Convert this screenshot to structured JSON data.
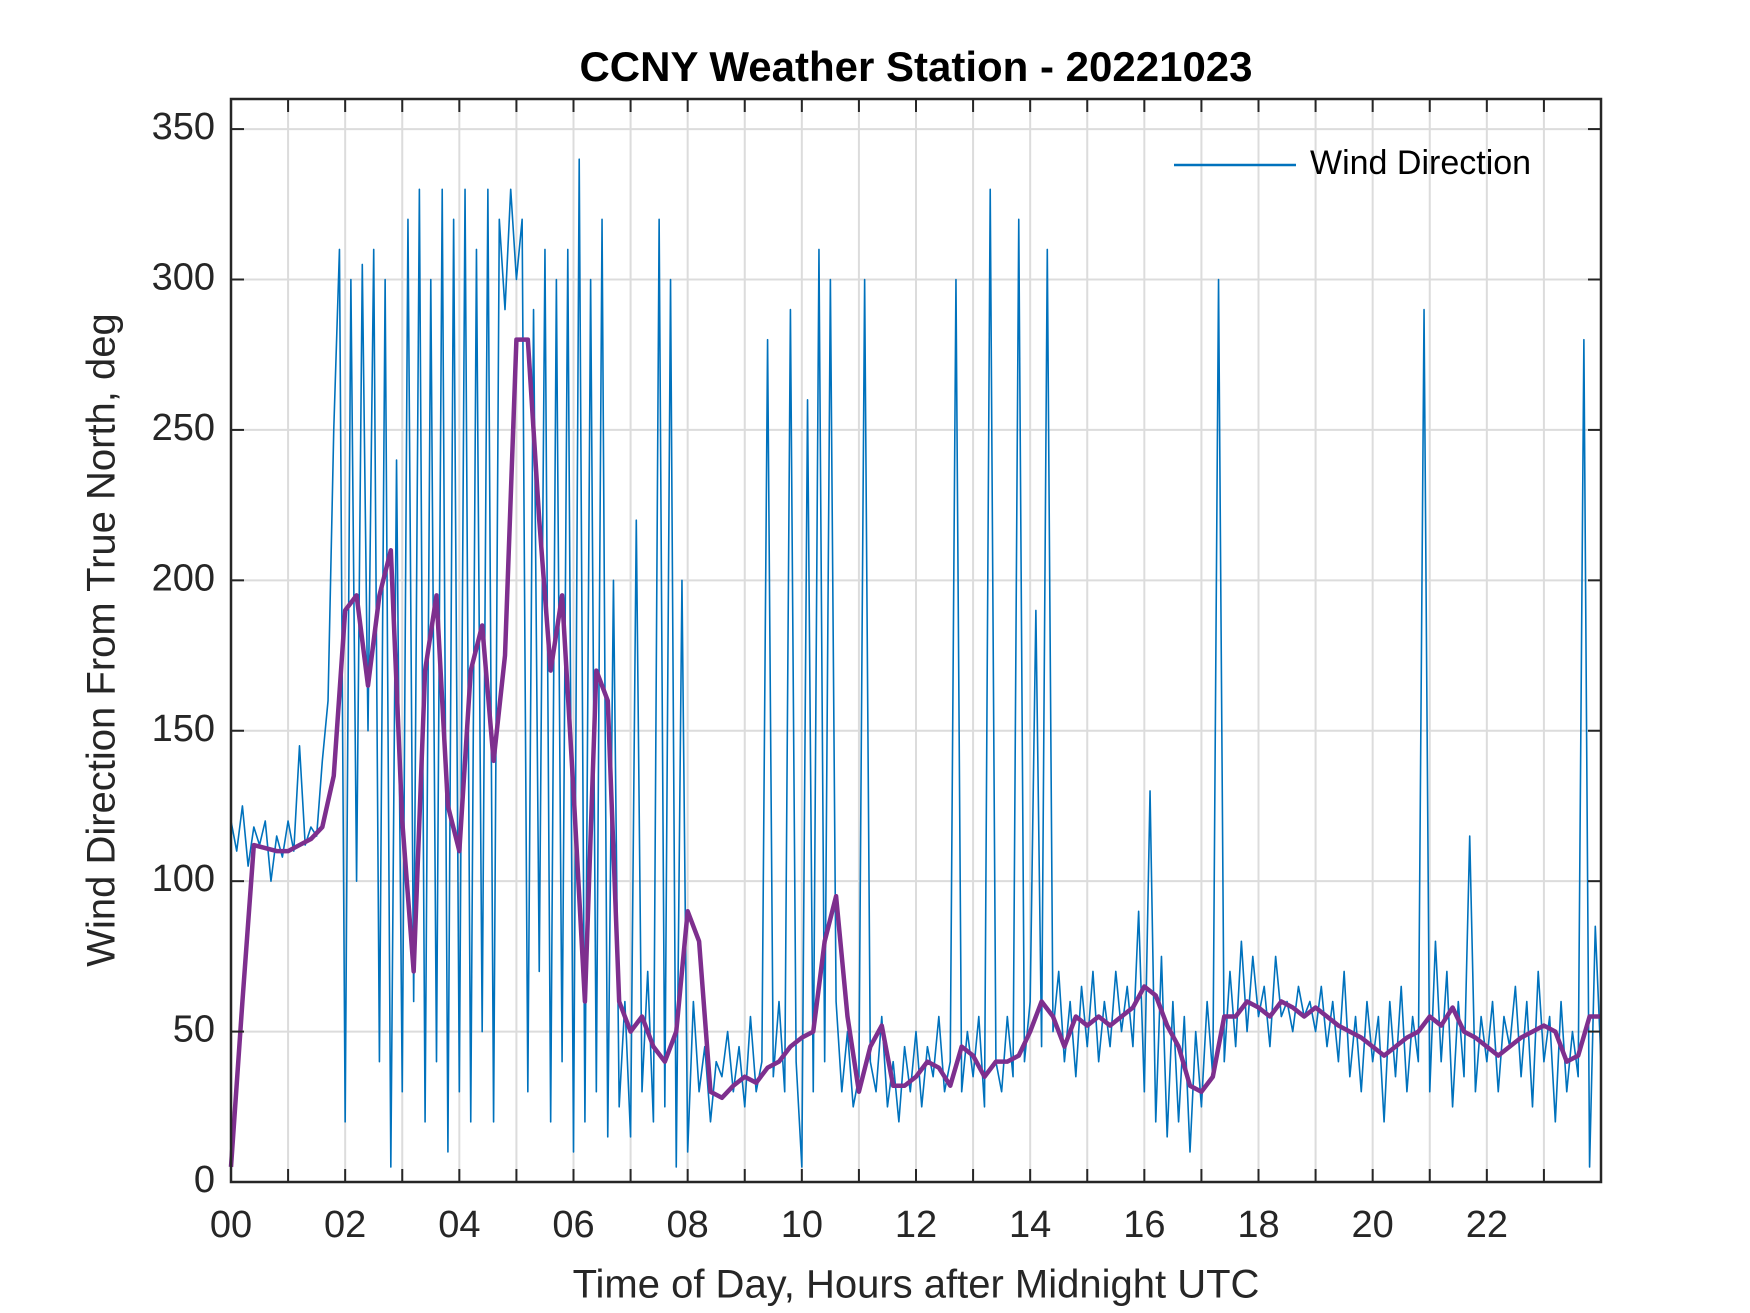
{
  "chart_data": {
    "type": "line",
    "title": "CCNY Weather Station - 20221023",
    "x_label": "Time of Day, Hours after Midnight UTC",
    "y_label": "Wind Direction From True North, deg",
    "xlim": [
      0,
      24
    ],
    "ylim": [
      0,
      360
    ],
    "xticks": [
      {
        "value": 0,
        "label": "00"
      },
      {
        "value": 2,
        "label": "02"
      },
      {
        "value": 4,
        "label": "04"
      },
      {
        "value": 6,
        "label": "06"
      },
      {
        "value": 8,
        "label": "08"
      },
      10,
      12,
      14,
      16,
      18,
      20,
      22
    ],
    "xminorticks": [
      1,
      3,
      5,
      7,
      9,
      11,
      13,
      15,
      17,
      19,
      21,
      23
    ],
    "yticks": [
      0,
      50,
      100,
      150,
      200,
      250,
      300,
      350
    ],
    "grid": true,
    "legend": "upper right",
    "series": [
      {
        "name": "Wind Direction",
        "color": "#0072bd",
        "x": [
          0,
          0.1,
          0.2,
          0.3,
          0.4,
          0.5,
          0.6,
          0.7,
          0.8,
          0.9,
          1,
          1.1,
          1.2,
          1.3,
          1.4,
          1.5,
          1.6,
          1.7,
          1.8,
          1.9,
          2,
          2.1,
          2.2,
          2.3,
          2.4,
          2.5,
          2.6,
          2.7,
          2.8,
          2.9,
          3,
          3.1,
          3.2,
          3.3,
          3.4,
          3.5,
          3.6,
          3.7,
          3.8,
          3.9,
          4,
          4.1,
          4.2,
          4.3,
          4.4,
          4.5,
          4.6,
          4.7,
          4.8,
          4.9,
          5,
          5.1,
          5.2,
          5.3,
          5.4,
          5.5,
          5.6,
          5.7,
          5.8,
          5.9,
          6,
          6.1,
          6.2,
          6.3,
          6.4,
          6.5,
          6.6,
          6.7,
          6.8,
          6.9,
          7,
          7.1,
          7.2,
          7.3,
          7.4,
          7.5,
          7.6,
          7.7,
          7.8,
          7.9,
          8,
          8.1,
          8.2,
          8.3,
          8.4,
          8.5,
          8.6,
          8.7,
          8.8,
          8.9,
          9,
          9.1,
          9.2,
          9.3,
          9.4,
          9.5,
          9.6,
          9.7,
          9.8,
          9.9,
          10,
          10.1,
          10.2,
          10.3,
          10.4,
          10.5,
          10.6,
          10.7,
          10.8,
          10.9,
          11,
          11.1,
          11.2,
          11.3,
          11.4,
          11.5,
          11.6,
          11.7,
          11.8,
          11.9,
          12,
          12.1,
          12.2,
          12.3,
          12.4,
          12.5,
          12.6,
          12.7,
          12.8,
          12.9,
          13,
          13.1,
          13.2,
          13.3,
          13.4,
          13.5,
          13.6,
          13.7,
          13.8,
          13.9,
          14,
          14.1,
          14.2,
          14.3,
          14.4,
          14.5,
          14.6,
          14.7,
          14.8,
          14.9,
          15,
          15.1,
          15.2,
          15.3,
          15.4,
          15.5,
          15.6,
          15.7,
          15.8,
          15.9,
          16,
          16.1,
          16.2,
          16.3,
          16.4,
          16.5,
          16.6,
          16.7,
          16.8,
          16.9,
          17,
          17.1,
          17.2,
          17.3,
          17.4,
          17.5,
          17.6,
          17.7,
          17.8,
          17.9,
          18,
          18.1,
          18.2,
          18.3,
          18.4,
          18.5,
          18.6,
          18.7,
          18.8,
          18.9,
          19,
          19.1,
          19.2,
          19.3,
          19.4,
          19.5,
          19.6,
          19.7,
          19.8,
          19.9,
          20,
          20.1,
          20.2,
          20.3,
          20.4,
          20.5,
          20.6,
          20.7,
          20.8,
          20.9,
          21,
          21.1,
          21.2,
          21.3,
          21.4,
          21.5,
          21.6,
          21.7,
          21.8,
          21.9,
          22,
          22.1,
          22.2,
          22.3,
          22.4,
          22.5,
          22.6,
          22.7,
          22.8,
          22.9,
          23,
          23.1,
          23.2,
          23.3,
          23.4,
          23.5,
          23.6,
          23.7,
          23.8,
          23.9,
          24
        ],
        "values": [
          120,
          110,
          125,
          105,
          118,
          112,
          120,
          100,
          115,
          108,
          120,
          110,
          145,
          112,
          118,
          115,
          140,
          160,
          250,
          310,
          20,
          300,
          100,
          305,
          150,
          310,
          40,
          300,
          5,
          240,
          30,
          320,
          60,
          330,
          20,
          300,
          40,
          330,
          10,
          320,
          30,
          330,
          20,
          310,
          50,
          330,
          20,
          320,
          290,
          330,
          300,
          320,
          30,
          290,
          70,
          310,
          20,
          300,
          40,
          310,
          10,
          340,
          20,
          300,
          30,
          320,
          15,
          200,
          25,
          60,
          15,
          220,
          30,
          70,
          20,
          320,
          25,
          300,
          5,
          200,
          10,
          60,
          30,
          45,
          20,
          40,
          35,
          50,
          30,
          45,
          25,
          55,
          30,
          40,
          280,
          35,
          60,
          30,
          290,
          40,
          5,
          260,
          30,
          310,
          40,
          300,
          60,
          30,
          50,
          25,
          35,
          300,
          40,
          30,
          55,
          25,
          40,
          20,
          45,
          30,
          50,
          25,
          45,
          35,
          55,
          30,
          40,
          300,
          30,
          50,
          35,
          55,
          25,
          330,
          40,
          30,
          55,
          35,
          320,
          40,
          60,
          190,
          45,
          310,
          50,
          70,
          40,
          60,
          35,
          65,
          45,
          70,
          40,
          60,
          45,
          70,
          50,
          65,
          45,
          90,
          30,
          130,
          20,
          75,
          15,
          60,
          20,
          55,
          10,
          50,
          25,
          60,
          35,
          300,
          40,
          70,
          45,
          80,
          50,
          75,
          55,
          65,
          45,
          75,
          55,
          60,
          50,
          65,
          55,
          60,
          50,
          65,
          45,
          60,
          40,
          70,
          35,
          55,
          30,
          60,
          40,
          55,
          20,
          60,
          35,
          65,
          30,
          55,
          40,
          290,
          30,
          80,
          40,
          70,
          25,
          60,
          35,
          115,
          30,
          55,
          40,
          60,
          30,
          55,
          45,
          65,
          35,
          60,
          25,
          70,
          40,
          55,
          20,
          60,
          30,
          50,
          35,
          280,
          5,
          85,
          40
        ]
      },
      {
        "color": "#7e2f8e",
        "x": [
          0,
          0.2,
          0.4,
          0.6,
          0.8,
          1,
          1.2,
          1.4,
          1.6,
          1.8,
          2,
          2.2,
          2.4,
          2.6,
          2.8,
          3,
          3.2,
          3.4,
          3.6,
          3.8,
          4,
          4.2,
          4.4,
          4.6,
          4.8,
          5,
          5.2,
          5.4,
          5.6,
          5.8,
          6,
          6.2,
          6.4,
          6.6,
          6.8,
          7,
          7.2,
          7.4,
          7.6,
          7.8,
          8,
          8.2,
          8.4,
          8.6,
          8.8,
          9,
          9.2,
          9.4,
          9.6,
          9.8,
          10,
          10.2,
          10.4,
          10.6,
          10.8,
          11,
          11.2,
          11.4,
          11.6,
          11.8,
          12,
          12.2,
          12.4,
          12.6,
          12.8,
          13,
          13.2,
          13.4,
          13.6,
          13.8,
          14,
          14.2,
          14.4,
          14.6,
          14.8,
          15,
          15.2,
          15.4,
          15.6,
          15.8,
          16,
          16.2,
          16.4,
          16.6,
          16.8,
          17,
          17.2,
          17.4,
          17.6,
          17.8,
          18,
          18.2,
          18.4,
          18.6,
          18.8,
          19,
          19.2,
          19.4,
          19.6,
          19.8,
          20,
          20.2,
          20.4,
          20.6,
          20.8,
          21,
          21.2,
          21.4,
          21.6,
          21.8,
          22,
          22.2,
          22.4,
          22.6,
          22.8,
          23,
          23.2,
          23.4,
          23.6,
          23.8,
          24
        ],
        "values": [
          5,
          60,
          112,
          111,
          110,
          110,
          112,
          114,
          118,
          135,
          190,
          195,
          165,
          195,
          210,
          120,
          70,
          170,
          195,
          125,
          110,
          170,
          185,
          140,
          175,
          280,
          280,
          220,
          170,
          195,
          130,
          60,
          170,
          160,
          60,
          50,
          55,
          45,
          40,
          50,
          90,
          80,
          30,
          28,
          32,
          35,
          33,
          38,
          40,
          45,
          48,
          50,
          80,
          95,
          55,
          30,
          45,
          52,
          32,
          32,
          35,
          40,
          38,
          32,
          45,
          42,
          35,
          40,
          40,
          42,
          50,
          60,
          55,
          45,
          55,
          52,
          55,
          52,
          55,
          58,
          65,
          62,
          52,
          45,
          32,
          30,
          35,
          55,
          55,
          60,
          58,
          55,
          60,
          58,
          55,
          58,
          55,
          52,
          50,
          48,
          45,
          42,
          45,
          48,
          50,
          55,
          52,
          58,
          50,
          48,
          45,
          42,
          45,
          48,
          50,
          52,
          50,
          40,
          42,
          55,
          55
        ]
      }
    ]
  }
}
